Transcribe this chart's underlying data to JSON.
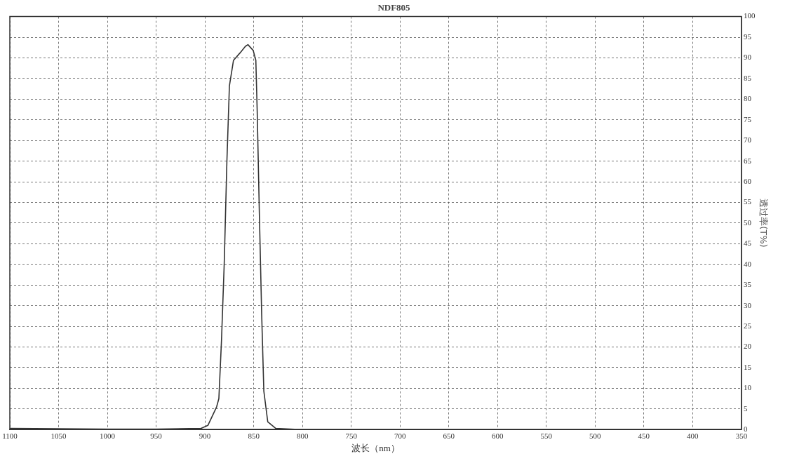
{
  "chart_data": {
    "type": "line",
    "title": "NDF805",
    "xlabel": "波长（nm）",
    "ylabel": "透过率(T%)",
    "xlim": [
      1100,
      350
    ],
    "xticks": [
      1100,
      1050,
      1000,
      950,
      900,
      850,
      800,
      750,
      700,
      650,
      600,
      550,
      500,
      450,
      400,
      350
    ],
    "ylim": [
      0,
      100
    ],
    "yticks": [
      0,
      5,
      10,
      15,
      20,
      25,
      30,
      35,
      40,
      45,
      50,
      55,
      60,
      65,
      70,
      75,
      80,
      85,
      90,
      95,
      100
    ],
    "grid": true,
    "legend": false,
    "marker": "none",
    "line_style": "solid",
    "series": [
      {
        "color": "#333333",
        "x": [
          1100,
          1050,
          1000,
          950,
          904,
          897,
          893,
          888,
          885.7,
          883,
          880.2,
          877.5,
          874.9,
          870.7,
          864,
          858.5,
          855.9,
          850.5,
          847.8,
          846.4,
          844.2,
          841.8,
          839.6,
          835.6,
          827.5,
          800,
          700,
          600,
          500,
          400,
          350
        ],
        "values": [
          0.3,
          0.2,
          0.1,
          0.1,
          0.3,
          1,
          3,
          5.5,
          7.5,
          21.6,
          40.2,
          64.7,
          83.2,
          89.4,
          91.2,
          92.8,
          93.2,
          91.8,
          89.4,
          77.1,
          52.4,
          27.8,
          9.3,
          1.9,
          0.3,
          0,
          0,
          0,
          0,
          0,
          0
        ]
      }
    ]
  }
}
